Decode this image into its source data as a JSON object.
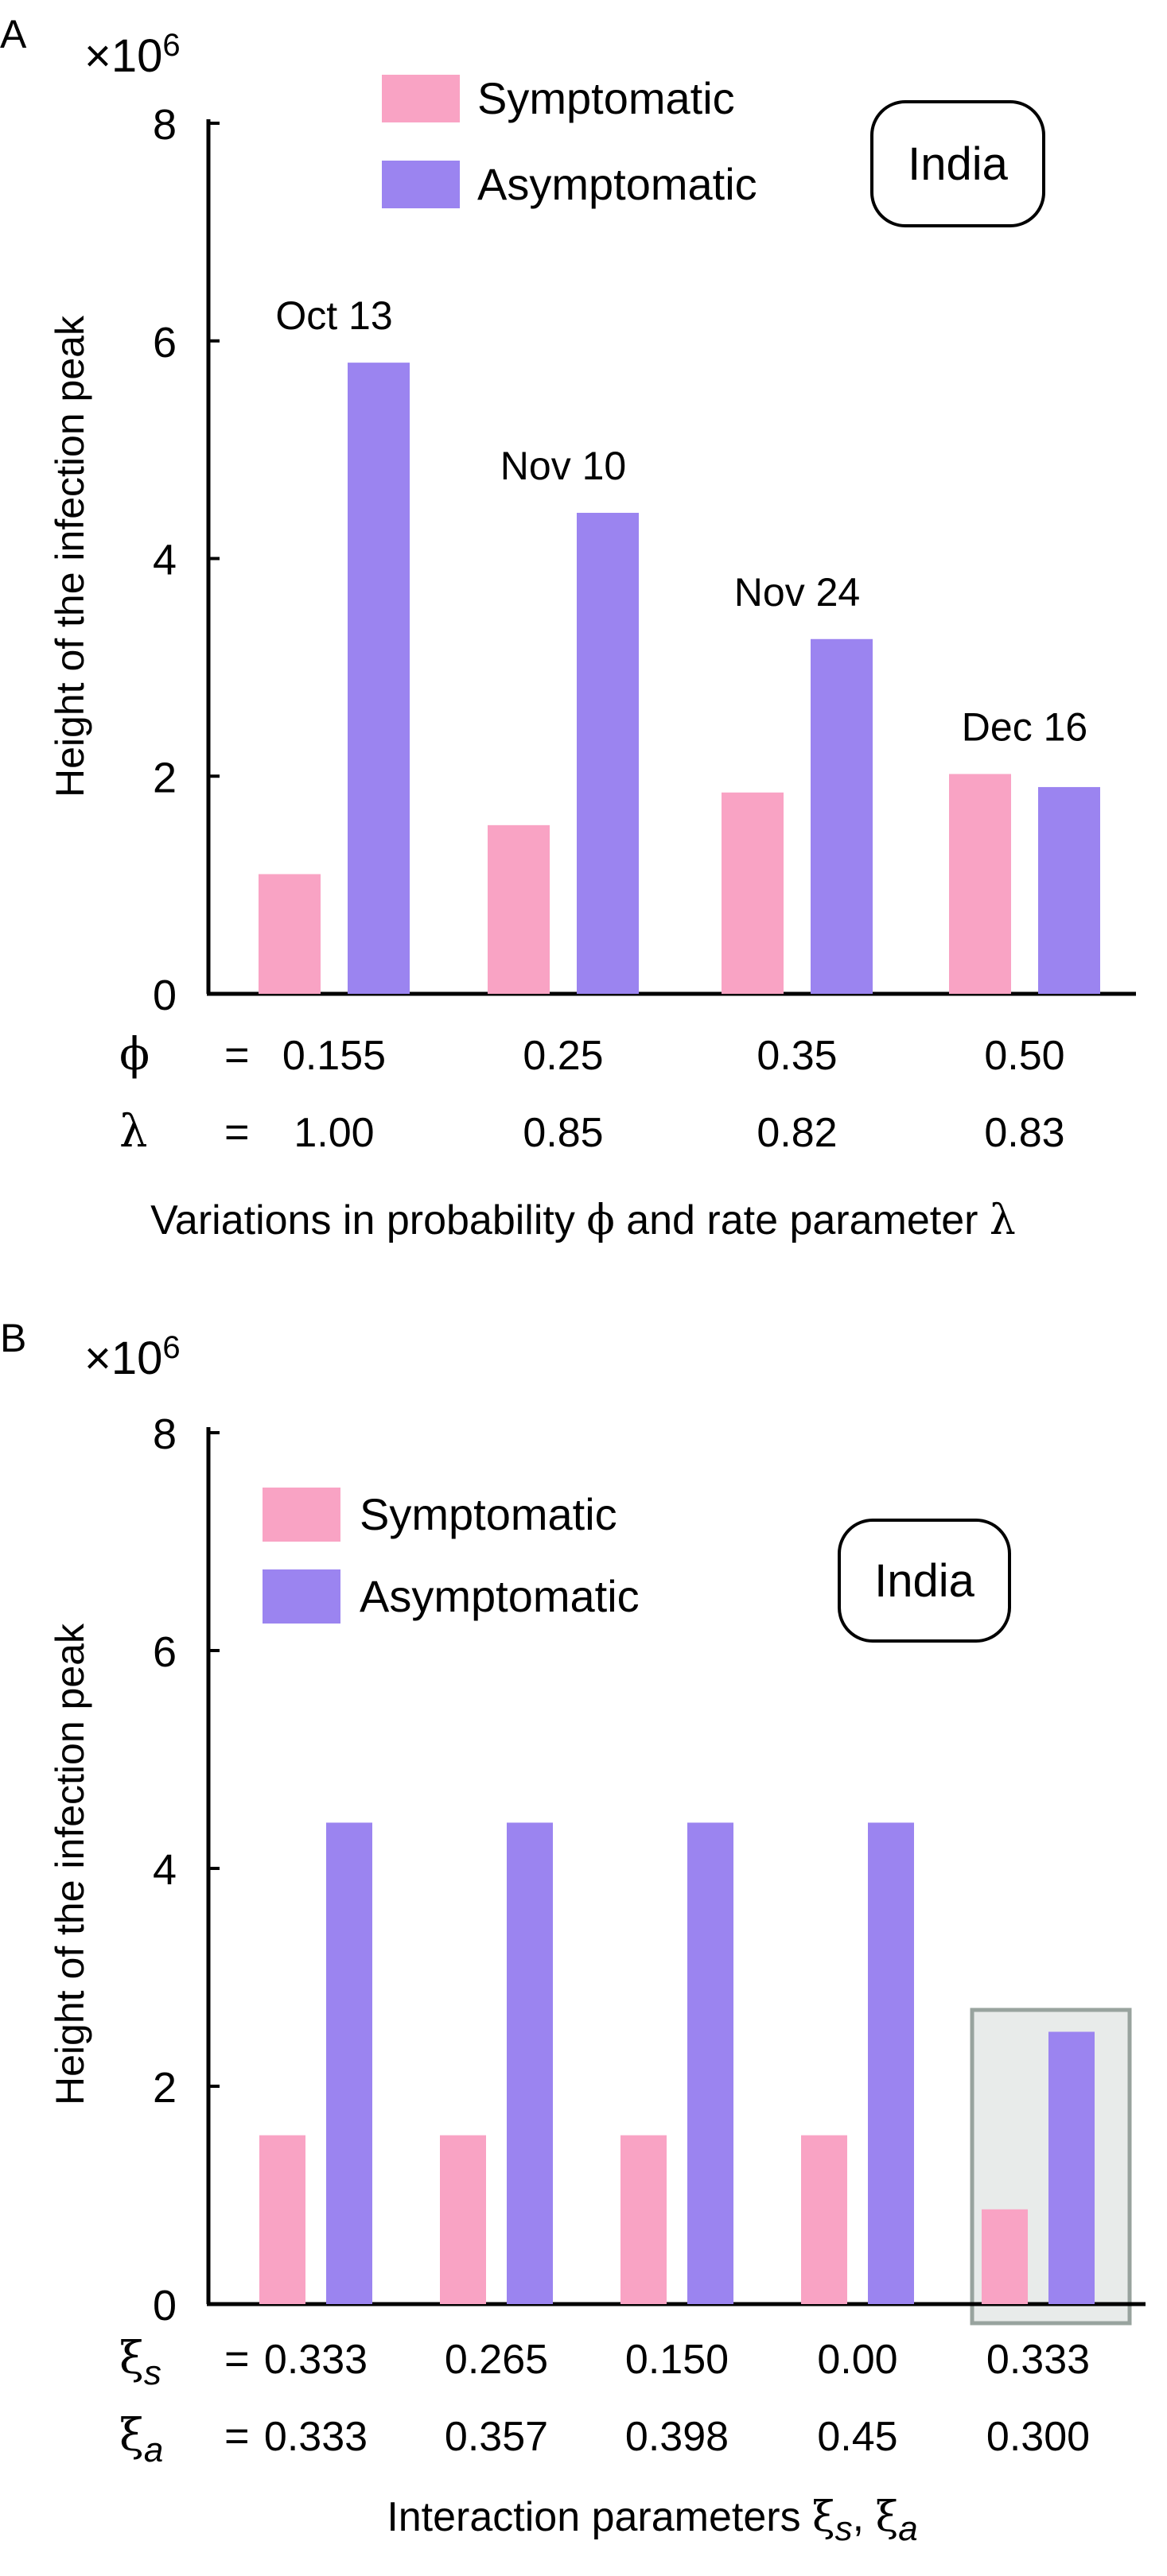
{
  "chart_data": [
    {
      "type": "bar",
      "panel_label": "A",
      "multiplier_symbol": "×10",
      "multiplier_exponent": "6",
      "ylabel": "Height of the infection peak",
      "xlabel_parts": [
        "Variations in probability ",
        "ϕ",
        " and rate parameter ",
        "λ"
      ],
      "ylim": [
        0,
        8
      ],
      "yticks": [
        "0",
        "2",
        "4",
        "6",
        "8"
      ],
      "region_label": "India",
      "legend": [
        "Symptomatic",
        "Asymptomatic"
      ],
      "colors": {
        "Symptomatic": "#f9a3c4",
        "Asymptomatic": "#9b84f0"
      },
      "series": [
        {
          "name": "Symptomatic",
          "values": [
            1.1,
            1.55,
            1.85,
            2.02
          ]
        },
        {
          "name": "Asymptomatic",
          "values": [
            5.8,
            4.42,
            3.26,
            1.9
          ]
        }
      ],
      "annotations": [
        "Oct 13",
        "Nov 10",
        "Nov 24",
        "Dec 16"
      ],
      "param_rows": [
        {
          "symbol": "ϕ",
          "sub": "",
          "eq": "=",
          "values": [
            "0.155",
            "0.25",
            "0.35",
            "0.50"
          ]
        },
        {
          "symbol": "λ",
          "sub": "",
          "eq": "=",
          "values": [
            "1.00",
            "0.85",
            "0.82",
            "0.83"
          ]
        }
      ]
    },
    {
      "type": "bar",
      "panel_label": "B",
      "multiplier_symbol": "×10",
      "multiplier_exponent": "6",
      "ylabel": "Height of the infection peak",
      "xlabel_parts": [
        "Interaction parameters ",
        "ξ",
        "s",
        ", ",
        "ξ",
        "a"
      ],
      "ylim": [
        0,
        8
      ],
      "yticks": [
        "0",
        "2",
        "4",
        "6",
        "8"
      ],
      "region_label": "India",
      "legend": [
        "Symptomatic",
        "Asymptomatic"
      ],
      "colors": {
        "Symptomatic": "#f9a3c4",
        "Asymptomatic": "#9b84f0",
        "highlight": "#e8ebea",
        "highlight_border": "#98a39e"
      },
      "series": [
        {
          "name": "Symptomatic",
          "values": [
            1.55,
            1.55,
            1.55,
            1.55,
            0.87
          ]
        },
        {
          "name": "Asymptomatic",
          "values": [
            4.42,
            4.42,
            4.42,
            4.42,
            2.5
          ]
        }
      ],
      "highlighted_group": 4,
      "param_rows": [
        {
          "symbol": "ξ",
          "sub": "s",
          "eq": "=",
          "values": [
            "0.333",
            "0.265",
            "0.150",
            "0.00",
            "0.333"
          ]
        },
        {
          "symbol": "ξ",
          "sub": "a",
          "eq": "=",
          "values": [
            "0.333",
            "0.357",
            "0.398",
            "0.45",
            "0.300"
          ]
        }
      ]
    }
  ]
}
